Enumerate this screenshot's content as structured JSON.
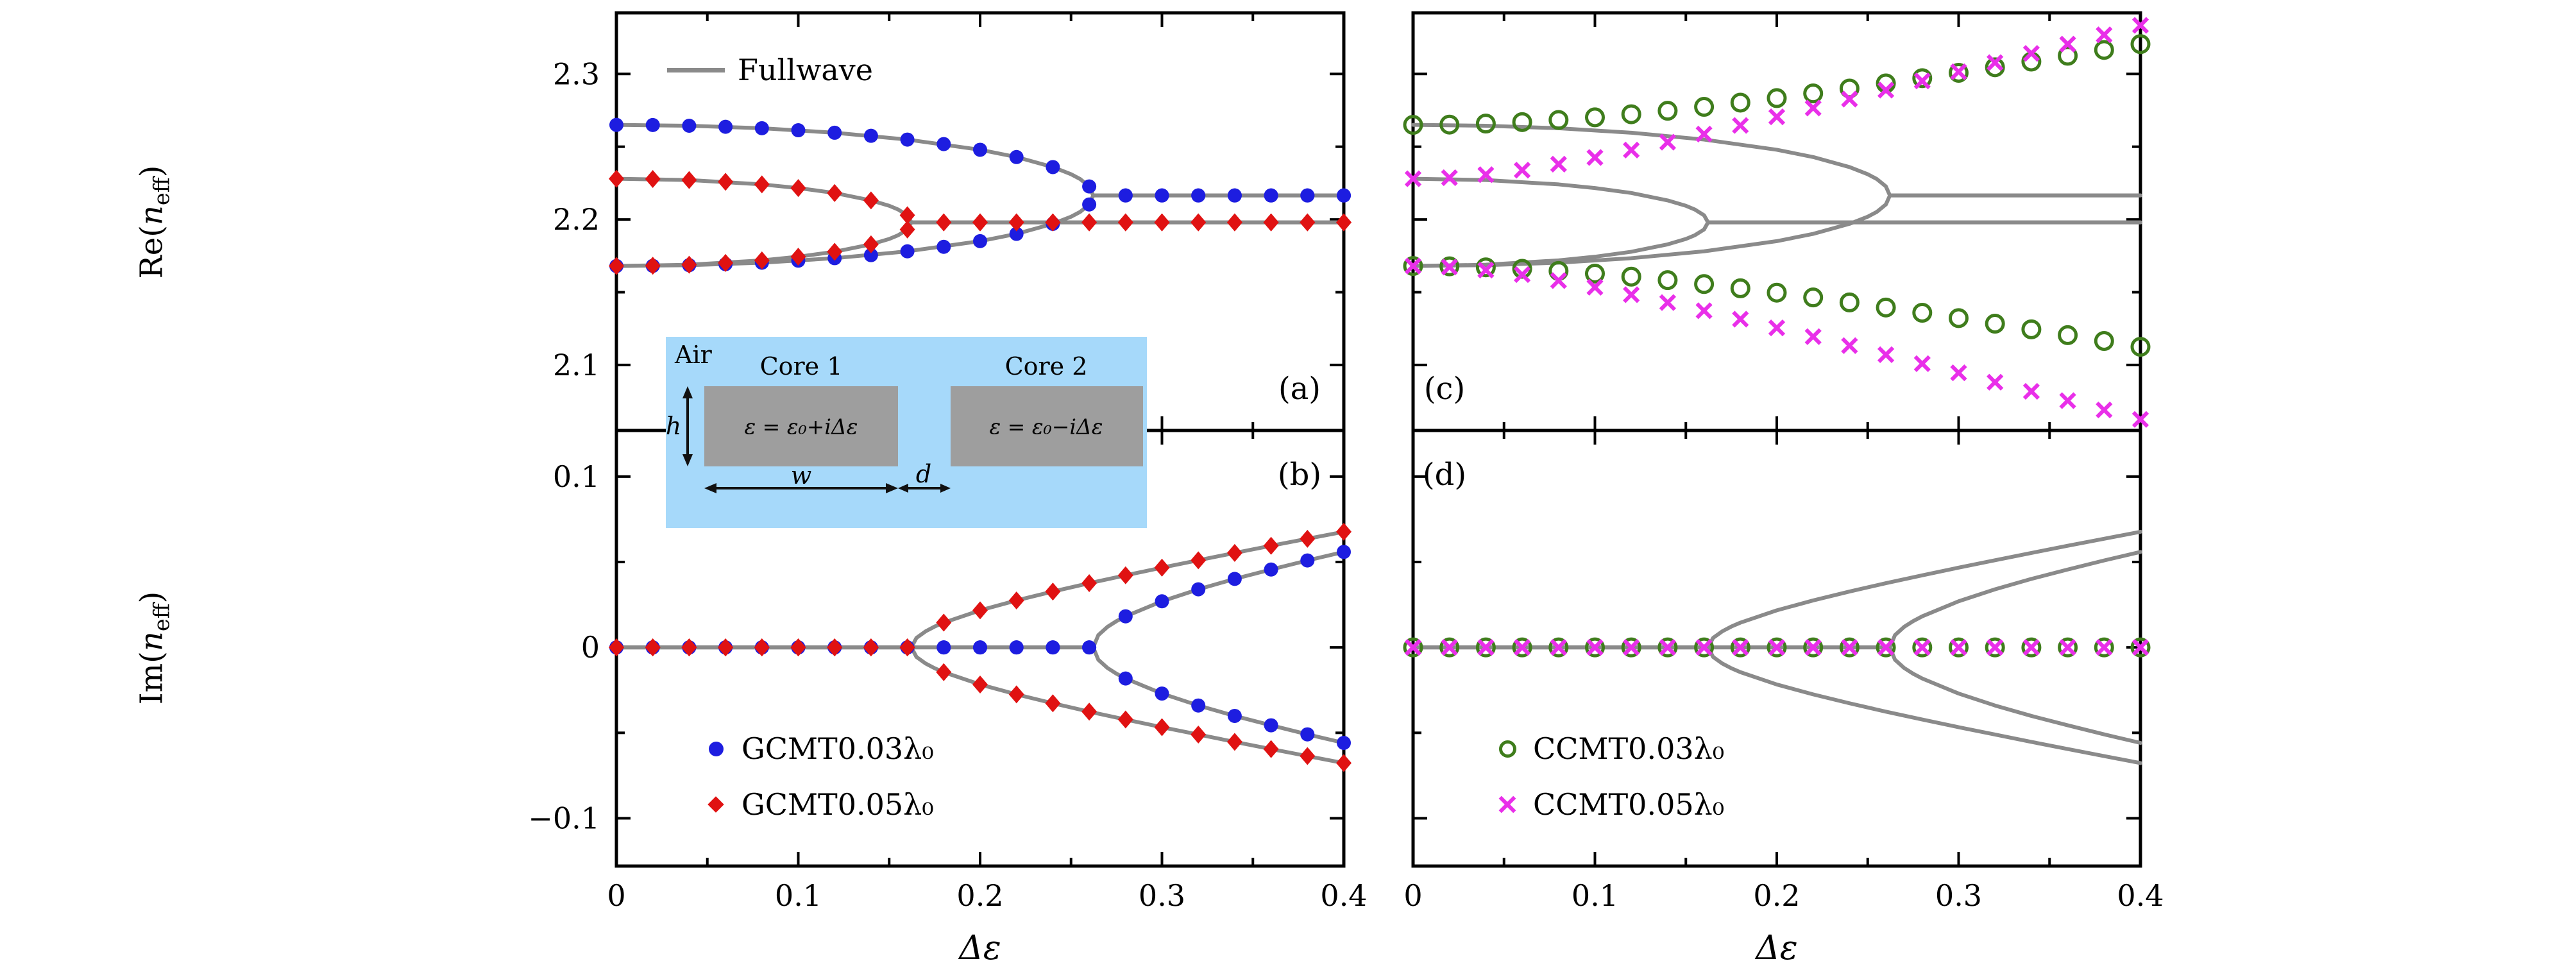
{
  "colors": {
    "fullwave": "#8a8a8a",
    "gcmt003": "#1d1de0",
    "gcmt005": "#e01212",
    "ccmt003": "#3f7d1c",
    "ccmt005": "#e92fe9",
    "axis": "#000000",
    "inset_bg": "#a6d9fa",
    "core": "#9e9e9e"
  },
  "labels": {
    "x_title": "Δε",
    "re": {
      "prefix": "Re(",
      "var": "n",
      "sub": "eff",
      "suffix": ")"
    },
    "im": {
      "prefix": "Im(",
      "var": "n",
      "sub": "eff",
      "suffix": ")"
    }
  },
  "legend": {
    "fullwave": {
      "label": "Fullwave"
    },
    "gcmt003": {
      "label": "GCMT0.03λ₀"
    },
    "gcmt005": {
      "label": "GCMT0.05λ₀"
    },
    "ccmt003": {
      "label": "CCMT0.03λ₀"
    },
    "ccmt005": {
      "label": "CCMT0.05λ₀"
    }
  },
  "inset": {
    "air": "Air",
    "core1": "Core 1",
    "core2": "Core 2",
    "eps1": "ε = ε₀+iΔε",
    "eps2": "ε = ε₀−iΔε",
    "h": "h",
    "w": "w",
    "d": "d"
  },
  "chart_data": {
    "type": "line",
    "subtype": "line+scatter, 4-panel bifurcation figure",
    "xlabel": "Δε",
    "ylabels": [
      "Re(n_eff)",
      "Im(n_eff)"
    ],
    "xlim": [
      0,
      0.4
    ],
    "x_markers": [
      0,
      0.02,
      0.04,
      0.06,
      0.08,
      0.1,
      0.12,
      0.14,
      0.16,
      0.18,
      0.2,
      0.22,
      0.24,
      0.26,
      0.28,
      0.3,
      0.32,
      0.34,
      0.36,
      0.38,
      0.4
    ],
    "panels": [
      {
        "id": "a",
        "letter": "(a)",
        "ylabel": "Re(n_eff)",
        "xlim": [
          0,
          0.4
        ],
        "ylim": [
          2.055,
          2.342
        ],
        "x_major": [
          0,
          0.1,
          0.2,
          0.3,
          0.4
        ],
        "x_minor": [
          0.05,
          0.15,
          0.25,
          0.35
        ],
        "y_major": [
          2.1,
          2.2,
          2.3
        ],
        "y_minor": [
          2.15,
          2.25
        ],
        "x_tick_labels": null,
        "y_tick_labels": [
          "2.1",
          "2.2",
          "2.3"
        ]
      },
      {
        "id": "b",
        "letter": "(b)",
        "ylabel": "Im(n_eff)",
        "xlim": [
          0,
          0.4
        ],
        "ylim": [
          -0.128,
          0.127
        ],
        "x_major": [
          0,
          0.1,
          0.2,
          0.3,
          0.4
        ],
        "x_minor": [
          0.05,
          0.15,
          0.25,
          0.35
        ],
        "y_major": [
          -0.1,
          0,
          0.1
        ],
        "y_minor": [
          -0.05,
          0.05
        ],
        "x_tick_labels": [
          "0",
          "0.1",
          "0.2",
          "0.3",
          "0.4"
        ],
        "y_tick_labels": [
          "−0.1",
          "0",
          "0.1"
        ]
      },
      {
        "id": "c",
        "letter": "(c)",
        "ylabel": "Re(n_eff)",
        "xlim": [
          0,
          0.4
        ],
        "ylim": [
          2.055,
          2.342
        ],
        "x_major": [
          0,
          0.1,
          0.2,
          0.3,
          0.4
        ],
        "x_minor": [
          0.05,
          0.15,
          0.25,
          0.35
        ],
        "y_major": [
          2.1,
          2.2,
          2.3
        ],
        "y_minor": [
          2.15,
          2.25
        ],
        "x_tick_labels": null,
        "y_tick_labels": null
      },
      {
        "id": "d",
        "letter": "(d)",
        "ylabel": "Im(n_eff)",
        "xlim": [
          0,
          0.4
        ],
        "ylim": [
          -0.128,
          0.127
        ],
        "x_major": [
          0,
          0.1,
          0.2,
          0.3,
          0.4
        ],
        "x_minor": [
          0.05,
          0.15,
          0.25,
          0.35
        ],
        "y_major": [
          -0.1,
          0,
          0.1
        ],
        "y_minor": [
          -0.05,
          0.05
        ],
        "x_tick_labels": [
          "0",
          "0.1",
          "0.2",
          "0.3",
          "0.4"
        ],
        "y_tick_labels": null
      }
    ],
    "series": [
      {
        "name": "fullwave-re-outer-upper",
        "style": "line",
        "color": "fullwave",
        "panels": [
          "a",
          "c"
        ],
        "x": [
          0,
          0.04,
          0.08,
          0.12,
          0.16,
          0.2,
          0.22,
          0.24,
          0.25,
          0.255,
          0.26,
          0.2622,
          0.3,
          0.4
        ],
        "y": [
          2.265,
          2.2644,
          2.2627,
          2.2596,
          2.2549,
          2.2479,
          2.2429,
          2.236,
          2.2311,
          2.2278,
          2.2227,
          2.2165,
          2.2165,
          2.2165
        ]
      },
      {
        "name": "fullwave-re-outer-lower",
        "style": "line",
        "color": "fullwave",
        "panels": [
          "a",
          "c"
        ],
        "x": [
          0,
          0.04,
          0.08,
          0.12,
          0.16,
          0.2,
          0.22,
          0.24,
          0.25,
          0.255,
          0.26,
          0.2622,
          0.3,
          0.4
        ],
        "y": [
          2.168,
          2.1686,
          2.1703,
          2.1734,
          2.1781,
          2.1851,
          2.1901,
          2.197,
          2.2019,
          2.2052,
          2.2103,
          2.2165,
          2.2165,
          2.2165
        ]
      },
      {
        "name": "fullwave-re-inner-upper",
        "style": "line",
        "color": "fullwave",
        "panels": [
          "a",
          "c"
        ],
        "x": [
          0,
          0.04,
          0.08,
          0.1,
          0.12,
          0.14,
          0.15,
          0.155,
          0.16,
          0.1622,
          0.2,
          0.3,
          0.4
        ],
        "y": [
          2.228,
          2.2271,
          2.2241,
          2.2216,
          2.2182,
          2.2131,
          2.2094,
          2.2068,
          2.2029,
          2.198,
          2.198,
          2.198,
          2.198
        ]
      },
      {
        "name": "fullwave-re-inner-lower",
        "style": "line",
        "color": "fullwave",
        "panels": [
          "a",
          "c"
        ],
        "x": [
          0,
          0.04,
          0.08,
          0.1,
          0.12,
          0.14,
          0.15,
          0.155,
          0.16,
          0.1622,
          0.2,
          0.3,
          0.4
        ],
        "y": [
          2.168,
          2.1689,
          2.1719,
          2.1744,
          2.1778,
          2.1829,
          2.1866,
          2.1892,
          2.1931,
          2.198,
          2.198,
          2.198,
          2.198
        ]
      },
      {
        "name": "fullwave-im-blue-plus",
        "style": "line",
        "color": "fullwave",
        "panels": [
          "b",
          "d"
        ],
        "x": [
          0,
          0.2622,
          0.265,
          0.27,
          0.275,
          0.28,
          0.3,
          0.32,
          0.34,
          0.36,
          0.38,
          0.4
        ],
        "y": [
          0,
          0,
          0.0072,
          0.012,
          0.0154,
          0.0182,
          0.027,
          0.034,
          0.0401,
          0.0456,
          0.0509,
          0.0559
        ]
      },
      {
        "name": "fullwave-im-blue-minus",
        "style": "line",
        "color": "fullwave",
        "panels": [
          "b",
          "d"
        ],
        "x": [
          0,
          0.2622,
          0.265,
          0.27,
          0.275,
          0.28,
          0.3,
          0.32,
          0.34,
          0.36,
          0.38,
          0.4
        ],
        "y": [
          0,
          0,
          -0.0072,
          -0.012,
          -0.0154,
          -0.0182,
          -0.027,
          -0.034,
          -0.0401,
          -0.0456,
          -0.0509,
          -0.0559
        ]
      },
      {
        "name": "fullwave-im-red-plus",
        "style": "line",
        "color": "fullwave",
        "panels": [
          "b",
          "d"
        ],
        "x": [
          0,
          0.1622,
          0.165,
          0.17,
          0.175,
          0.18,
          0.2,
          0.22,
          0.24,
          0.26,
          0.28,
          0.3,
          0.32,
          0.34,
          0.36,
          0.38,
          0.4
        ],
        "y": [
          0,
          0,
          0.0056,
          0.0094,
          0.0122,
          0.0145,
          0.0217,
          0.0275,
          0.0327,
          0.0376,
          0.0422,
          0.0467,
          0.051,
          0.0553,
          0.0595,
          0.0636,
          0.0677
        ]
      },
      {
        "name": "fullwave-im-red-minus",
        "style": "line",
        "color": "fullwave",
        "panels": [
          "b",
          "d"
        ],
        "x": [
          0,
          0.1622,
          0.165,
          0.17,
          0.175,
          0.18,
          0.2,
          0.22,
          0.24,
          0.26,
          0.28,
          0.3,
          0.32,
          0.34,
          0.36,
          0.38,
          0.4
        ],
        "y": [
          0,
          0,
          -0.0056,
          -0.0094,
          -0.0122,
          -0.0145,
          -0.0217,
          -0.0275,
          -0.0327,
          -0.0376,
          -0.0422,
          -0.0467,
          -0.051,
          -0.0553,
          -0.0595,
          -0.0636,
          -0.0677
        ]
      },
      {
        "name": "gcmt003-re-upper",
        "style": "dot",
        "color": "gcmt003",
        "panels": [
          "a"
        ],
        "x": "markers",
        "y": [
          2.265,
          2.2649,
          2.2644,
          2.2637,
          2.2627,
          2.2613,
          2.2596,
          2.2575,
          2.2549,
          2.2518,
          2.2479,
          2.2429,
          2.236,
          2.2227,
          2.2165,
          2.2165,
          2.2165,
          2.2165,
          2.2165,
          2.2165,
          2.2165
        ]
      },
      {
        "name": "gcmt003-re-lower",
        "style": "dot",
        "color": "gcmt003",
        "panels": [
          "a"
        ],
        "x": "markers",
        "y": [
          2.168,
          2.1681,
          2.1686,
          2.1693,
          2.1703,
          2.1717,
          2.1734,
          2.1755,
          2.1781,
          2.1812,
          2.1851,
          2.1901,
          2.197,
          2.2103,
          2.2165,
          2.2165,
          2.2165,
          2.2165,
          2.2165,
          2.2165,
          2.2165
        ]
      },
      {
        "name": "gcmt005-re-upper",
        "style": "diamond",
        "color": "gcmt005",
        "panels": [
          "a"
        ],
        "x": "markers",
        "y": [
          2.228,
          2.2278,
          2.2271,
          2.2259,
          2.2241,
          2.2216,
          2.2182,
          2.2131,
          2.2029,
          2.198,
          2.198,
          2.198,
          2.198,
          2.198,
          2.198,
          2.198,
          2.198,
          2.198,
          2.198,
          2.198,
          2.198
        ]
      },
      {
        "name": "gcmt005-re-lower",
        "style": "diamond",
        "color": "gcmt005",
        "panels": [
          "a"
        ],
        "x": "markers",
        "y": [
          2.168,
          2.1682,
          2.1689,
          2.1701,
          2.1719,
          2.1744,
          2.1778,
          2.1829,
          2.1931,
          2.198,
          2.198,
          2.198,
          2.198,
          2.198,
          2.198,
          2.198,
          2.198,
          2.198,
          2.198,
          2.198,
          2.198
        ]
      },
      {
        "name": "gcmt003-im-upper",
        "style": "dot",
        "color": "gcmt003",
        "panels": [
          "b"
        ],
        "x": "markers",
        "y": [
          0,
          0,
          0,
          0,
          0,
          0,
          0,
          0,
          0,
          0,
          0,
          0,
          0,
          0,
          0.0182,
          0.027,
          0.034,
          0.0401,
          0.0456,
          0.0509,
          0.0559
        ]
      },
      {
        "name": "gcmt003-im-lower",
        "style": "dot",
        "color": "gcmt003",
        "panels": [
          "b"
        ],
        "x": "markers",
        "y": [
          0,
          0,
          0,
          0,
          0,
          0,
          0,
          0,
          0,
          0,
          0,
          0,
          0,
          0,
          -0.0182,
          -0.027,
          -0.034,
          -0.0401,
          -0.0456,
          -0.0509,
          -0.0559
        ]
      },
      {
        "name": "gcmt005-im-upper",
        "style": "diamond",
        "color": "gcmt005",
        "panels": [
          "b"
        ],
        "x": "markers",
        "y": [
          0,
          0,
          0,
          0,
          0,
          0,
          0,
          0,
          0,
          0.0145,
          0.0217,
          0.0275,
          0.0327,
          0.0376,
          0.0422,
          0.0467,
          0.051,
          0.0553,
          0.0595,
          0.0636,
          0.0677
        ]
      },
      {
        "name": "gcmt005-im-lower",
        "style": "diamond",
        "color": "gcmt005",
        "panels": [
          "b"
        ],
        "x": "markers",
        "y": [
          0,
          0,
          0,
          0,
          0,
          0,
          0,
          0,
          0,
          -0.0145,
          -0.0217,
          -0.0275,
          -0.0327,
          -0.0376,
          -0.0422,
          -0.0467,
          -0.051,
          -0.0553,
          -0.0595,
          -0.0636,
          -0.0677
        ]
      },
      {
        "name": "ccmt003-re-upper",
        "style": "ring",
        "color": "ccmt003",
        "panels": [
          "c"
        ],
        "x": "markers",
        "y": [
          2.265,
          2.2652,
          2.2659,
          2.2669,
          2.2684,
          2.2702,
          2.2723,
          2.2747,
          2.2774,
          2.2803,
          2.2834,
          2.2866,
          2.29,
          2.2935,
          2.2971,
          2.3008,
          2.3046,
          2.3085,
          2.3125,
          2.3165,
          2.3205
        ]
      },
      {
        "name": "ccmt003-re-lower",
        "style": "ring",
        "color": "ccmt003",
        "panels": [
          "c"
        ],
        "x": "markers",
        "y": [
          2.168,
          2.1678,
          2.1671,
          2.1661,
          2.1646,
          2.1628,
          2.1607,
          2.1583,
          2.1556,
          2.1527,
          2.1497,
          2.1464,
          2.143,
          2.1395,
          2.1359,
          2.1322,
          2.1284,
          2.1245,
          2.1205,
          2.1165,
          2.1125
        ]
      },
      {
        "name": "ccmt005-re-upper",
        "style": "cross",
        "color": "ccmt005",
        "panels": [
          "c"
        ],
        "x": "markers",
        "y": [
          2.228,
          2.2287,
          2.2308,
          2.2339,
          2.238,
          2.2426,
          2.2477,
          2.2531,
          2.2587,
          2.2646,
          2.2705,
          2.2766,
          2.2827,
          2.2889,
          2.2952,
          2.3015,
          2.3078,
          2.3141,
          2.3205,
          2.3269,
          2.3334
        ]
      },
      {
        "name": "ccmt005-re-lower",
        "style": "cross",
        "color": "ccmt005",
        "panels": [
          "c"
        ],
        "x": "markers",
        "y": [
          2.168,
          2.1673,
          2.1652,
          2.1621,
          2.158,
          2.1534,
          2.1483,
          2.1429,
          2.1373,
          2.1315,
          2.1255,
          2.1195,
          2.1133,
          2.1071,
          2.1009,
          2.0946,
          2.0882,
          2.0819,
          2.0755,
          2.0691,
          2.0626
        ]
      },
      {
        "name": "ccmt003-im",
        "style": "ring",
        "color": "ccmt003",
        "panels": [
          "d"
        ],
        "x": "markers",
        "y": [
          0,
          0,
          0,
          0,
          0,
          0,
          0,
          0,
          0,
          0,
          0,
          0,
          0,
          0,
          0,
          0,
          0,
          0,
          0,
          0,
          0
        ]
      },
      {
        "name": "ccmt005-im",
        "style": "cross",
        "color": "ccmt005",
        "panels": [
          "d"
        ],
        "x": "markers",
        "y": [
          0,
          0,
          0,
          0,
          0,
          0,
          0,
          0,
          0,
          0,
          0,
          0,
          0,
          0,
          0,
          0,
          0,
          0,
          0,
          0,
          0
        ]
      }
    ]
  }
}
